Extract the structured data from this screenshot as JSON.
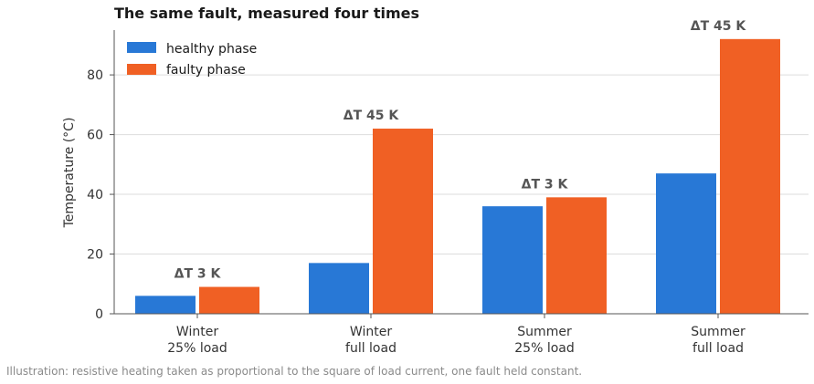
{
  "colors": {
    "healthy": "#2878d6",
    "faulty": "#f06024",
    "grid": "#dddddd",
    "axis": "#555555"
  },
  "chart_data": {
    "type": "bar",
    "title": "The same fault, measured four times",
    "xlabel": "",
    "ylabel": "Temperature (°C)",
    "ylim": [
      0,
      95
    ],
    "yticks": [
      0,
      20,
      40,
      60,
      80
    ],
    "grid": true,
    "legend_position": "top-left",
    "categories": [
      [
        "Winter",
        "25% load"
      ],
      [
        "Winter",
        "full load"
      ],
      [
        "Summer",
        "25% load"
      ],
      [
        "Summer",
        "full load"
      ]
    ],
    "series": [
      {
        "name": "healthy phase",
        "values": [
          6,
          17,
          36,
          47
        ]
      },
      {
        "name": "faulty phase",
        "values": [
          9,
          62,
          39,
          92
        ]
      }
    ],
    "annotations": [
      "ΔT 3 K",
      "ΔT 45 K",
      "ΔT 3 K",
      "ΔT 45 K"
    ]
  },
  "footnote": "Illustration: resistive heating taken as proportional to the square of load current, one fault held constant."
}
